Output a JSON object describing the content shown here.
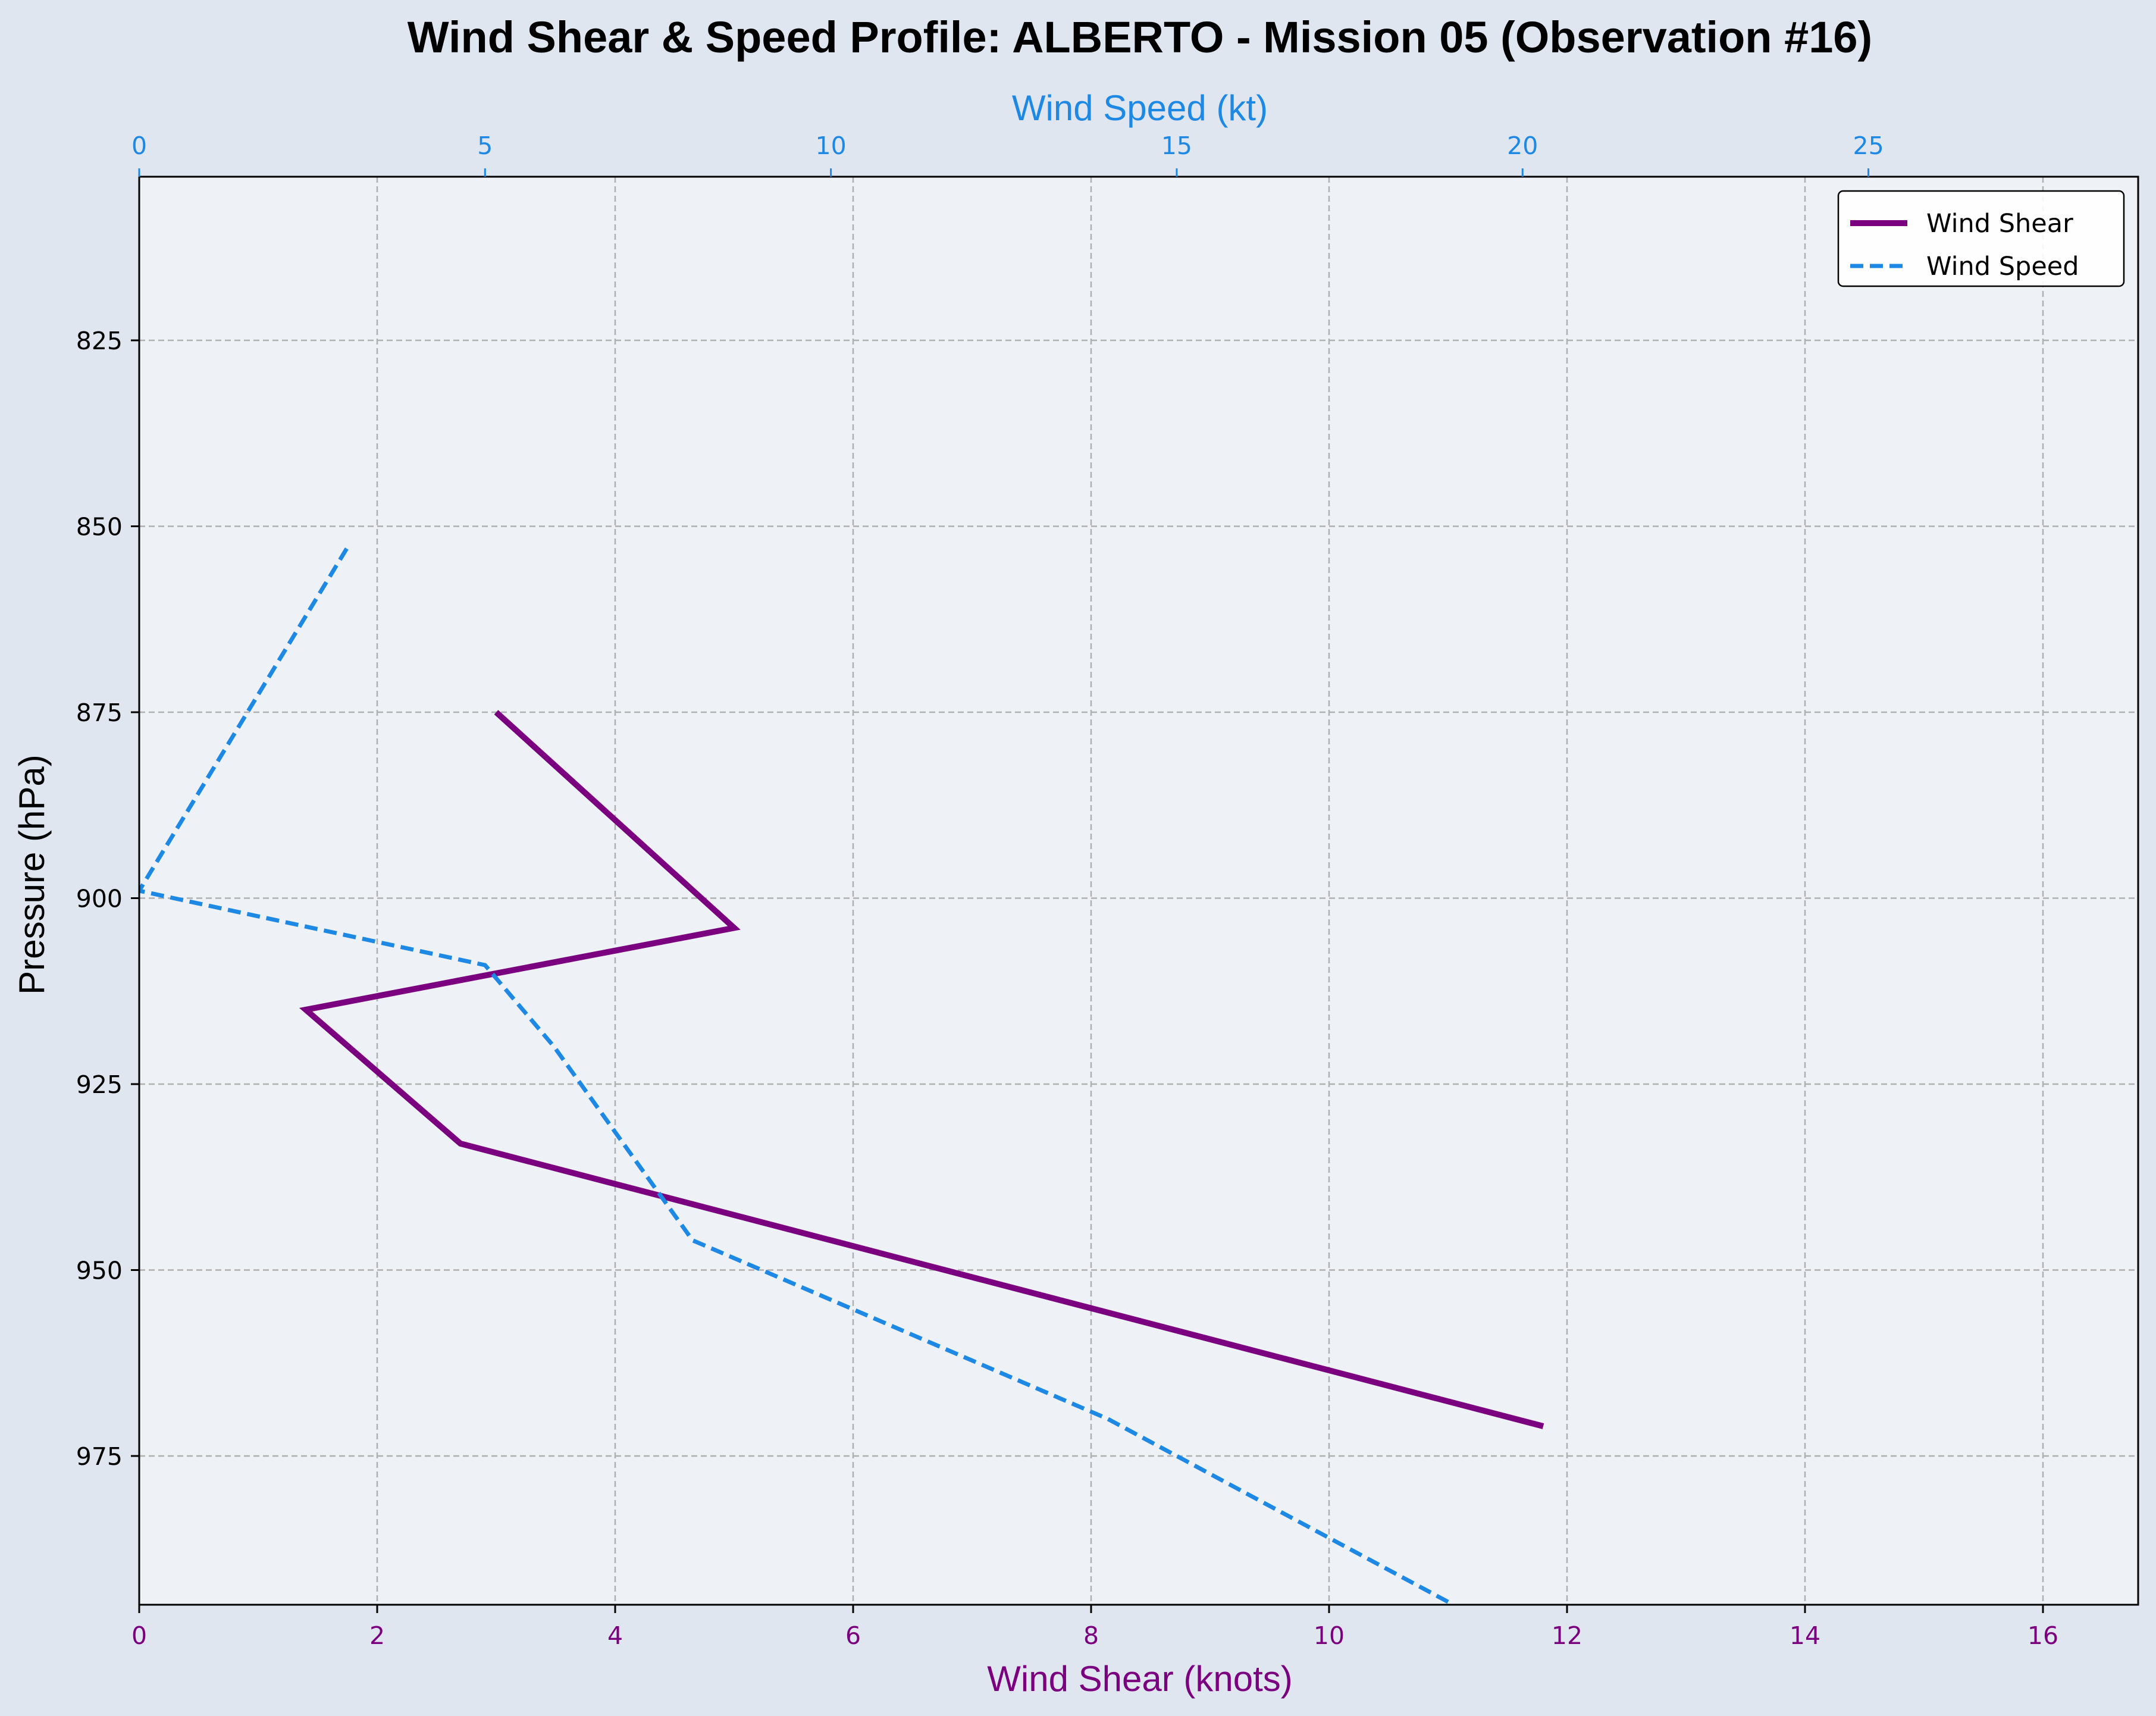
{
  "chart_data": {
    "type": "line",
    "title": "Wind Shear & Speed Profile: ALBERTO - Mission 05 (Observation #16)",
    "xlabel_bottom": "Wind Shear (knots)",
    "xlabel_top": "Wind Speed (kt)",
    "ylabel": "Pressure (hPa)",
    "x_bottom_lim": [
      0,
      16.8
    ],
    "x_top_lim": [
      0,
      28.9
    ],
    "ylim_inverted": [
      803,
      995
    ],
    "x_bottom_ticks": [
      "0",
      "2",
      "4",
      "6",
      "8",
      "10",
      "12",
      "14",
      "16"
    ],
    "x_top_ticks": [
      "0",
      "5",
      "10",
      "15",
      "20",
      "25"
    ],
    "y_ticks": [
      "825",
      "850",
      "875",
      "900",
      "925",
      "950",
      "975"
    ],
    "grid": true,
    "legend_position": "top-right",
    "colors": {
      "shear": "#7b0080",
      "speed": "#1e88e5",
      "axes_bg": "#eef2f7",
      "figure_bg": "#dfe6f0"
    },
    "series": [
      {
        "name": "Wind Shear",
        "axis": "bottom",
        "style": "solid",
        "points": [
          {
            "x": 3.0,
            "p": 875
          },
          {
            "x": 5.0,
            "p": 904
          },
          {
            "x": 1.4,
            "p": 915
          },
          {
            "x": 2.7,
            "p": 933
          },
          {
            "x": 11.8,
            "p": 971
          }
        ]
      },
      {
        "name": "Wind Speed",
        "axis": "top",
        "style": "dashed",
        "points": [
          {
            "x": 3.0,
            "p": 853
          },
          {
            "x": 0.0,
            "p": 899
          },
          {
            "x": 5.0,
            "p": 909
          },
          {
            "x": 6.0,
            "p": 920
          },
          {
            "x": 8.0,
            "p": 946
          },
          {
            "x": 9.0,
            "p": 950
          },
          {
            "x": 14.0,
            "p": 970
          },
          {
            "x": 19.0,
            "p": 995
          }
        ]
      }
    ]
  }
}
